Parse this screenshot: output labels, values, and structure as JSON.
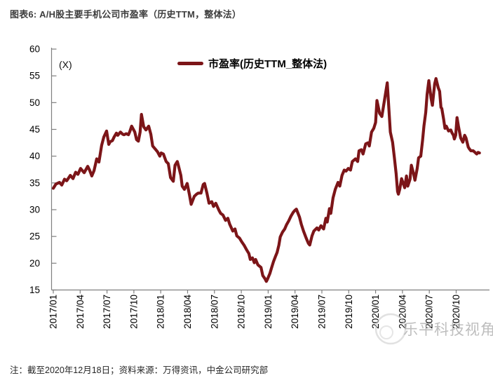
{
  "page": {
    "background": "#ffffff"
  },
  "title": {
    "text": "图表6: A/H股主要手机公司市盈率（历史TTM，整体法）"
  },
  "legend": {
    "label": "市盈率(历史TTM_整体法)",
    "swatch_color": "#7C1518"
  },
  "footnote": {
    "text": "注：截至2020年12月18日；资料来源：万得资讯，中金公司研究部"
  },
  "watermark": {
    "text": "乐平科技视角"
  },
  "chart_data": {
    "type": "line",
    "title": "A/H股主要手机公司市盈率（历史TTM，整体法）",
    "unit_label": "(X)",
    "legend_position": "top-center",
    "grid": false,
    "axis_color": "#7f7f7f",
    "label_color": "#000000",
    "x_axis": {
      "unit": "months since 2017/01 (fractional month offsets)",
      "tick_interval_months": 3,
      "tick_labels": [
        "2017/01",
        "2017/04",
        "2017/07",
        "2017/10",
        "2018/01",
        "2018/04",
        "2018/07",
        "2018/10",
        "2019/01",
        "2019/04",
        "2019/07",
        "2019/10",
        "2020/01",
        "2020/04",
        "2020/07",
        "2020/10"
      ],
      "range_months": [
        0,
        47.6
      ]
    },
    "y_axis": {
      "min": 15,
      "max": 60,
      "step": 5,
      "ticks": [
        15,
        20,
        25,
        30,
        35,
        40,
        45,
        50,
        55,
        60
      ]
    },
    "series": [
      {
        "name": "市盈率(历史TTM_整体法)",
        "color": "#7C1518",
        "points": [
          [
            0,
            34.0
          ],
          [
            0.3,
            34.8
          ],
          [
            0.7,
            35.1
          ],
          [
            0.95,
            34.6
          ],
          [
            1.25,
            35.7
          ],
          [
            1.5,
            35.4
          ],
          [
            1.9,
            36.4
          ],
          [
            2.2,
            35.8
          ],
          [
            2.5,
            37.0
          ],
          [
            2.75,
            36.6
          ],
          [
            3.05,
            37.7
          ],
          [
            3.45,
            36.9
          ],
          [
            3.85,
            38.1
          ],
          [
            4.05,
            37.4
          ],
          [
            4.3,
            36.3
          ],
          [
            4.55,
            37.3
          ],
          [
            4.85,
            39.5
          ],
          [
            5.1,
            38.9
          ],
          [
            5.4,
            42.0
          ],
          [
            5.65,
            43.6
          ],
          [
            5.95,
            44.7
          ],
          [
            6.2,
            42.2
          ],
          [
            6.35,
            42.7
          ],
          [
            6.6,
            42.9
          ],
          [
            6.8,
            43.6
          ],
          [
            7.05,
            44.3
          ],
          [
            7.2,
            43.9
          ],
          [
            7.5,
            44.5
          ],
          [
            7.75,
            44.1
          ],
          [
            7.9,
            44.0
          ],
          [
            8.15,
            44.2
          ],
          [
            8.4,
            44.0
          ],
          [
            8.55,
            44.6
          ],
          [
            8.75,
            45.6
          ],
          [
            9.1,
            44.5
          ],
          [
            9.3,
            43.1
          ],
          [
            9.5,
            42.8
          ],
          [
            9.7,
            44.5
          ],
          [
            9.85,
            47.8
          ],
          [
            10.1,
            45.5
          ],
          [
            10.35,
            44.9
          ],
          [
            10.65,
            45.6
          ],
          [
            10.9,
            44.1
          ],
          [
            11.1,
            41.9
          ],
          [
            11.45,
            41.2
          ],
          [
            11.65,
            40.8
          ],
          [
            11.9,
            40.0
          ],
          [
            12.05,
            40.6
          ],
          [
            12.3,
            40.4
          ],
          [
            12.6,
            39.0
          ],
          [
            12.85,
            38.6
          ],
          [
            13.1,
            36.0
          ],
          [
            13.4,
            35.3
          ],
          [
            13.6,
            38.3
          ],
          [
            13.85,
            39.0
          ],
          [
            14.0,
            38.1
          ],
          [
            14.25,
            36.4
          ],
          [
            14.4,
            34.4
          ],
          [
            14.65,
            33.8
          ],
          [
            14.95,
            34.9
          ],
          [
            15.2,
            32.9
          ],
          [
            15.4,
            31.0
          ],
          [
            15.75,
            32.5
          ],
          [
            16.0,
            32.9
          ],
          [
            16.2,
            33.1
          ],
          [
            16.5,
            33.1
          ],
          [
            16.75,
            34.7
          ],
          [
            16.9,
            34.9
          ],
          [
            17.15,
            33.2
          ],
          [
            17.4,
            31.2
          ],
          [
            17.7,
            31.5
          ],
          [
            17.9,
            30.6
          ],
          [
            18.15,
            31.2
          ],
          [
            18.5,
            29.9
          ],
          [
            18.7,
            29.3
          ],
          [
            18.95,
            29.0
          ],
          [
            19.25,
            28.0
          ],
          [
            19.5,
            28.4
          ],
          [
            19.7,
            27.3
          ],
          [
            20.05,
            26.0
          ],
          [
            20.3,
            26.4
          ],
          [
            20.5,
            25.1
          ],
          [
            20.8,
            24.7
          ],
          [
            21.05,
            24.0
          ],
          [
            21.3,
            23.4
          ],
          [
            21.6,
            22.5
          ],
          [
            21.85,
            21.8
          ],
          [
            22.0,
            20.7
          ],
          [
            22.25,
            21.0
          ],
          [
            22.45,
            20.1
          ],
          [
            22.6,
            20.7
          ],
          [
            22.85,
            19.7
          ],
          [
            23.2,
            19.2
          ],
          [
            23.4,
            17.7
          ],
          [
            23.65,
            17.1
          ],
          [
            23.8,
            16.6
          ],
          [
            23.95,
            17.1
          ],
          [
            24.2,
            18.1
          ],
          [
            24.35,
            19.0
          ],
          [
            24.6,
            20.3
          ],
          [
            24.8,
            21.2
          ],
          [
            25.0,
            22.0
          ],
          [
            25.2,
            23.4
          ],
          [
            25.35,
            24.9
          ],
          [
            25.6,
            25.8
          ],
          [
            25.85,
            26.4
          ],
          [
            26.05,
            27.2
          ],
          [
            26.3,
            27.9
          ],
          [
            26.55,
            28.8
          ],
          [
            26.8,
            29.5
          ],
          [
            27.0,
            29.9
          ],
          [
            27.15,
            30.1
          ],
          [
            27.5,
            28.6
          ],
          [
            27.7,
            27.3
          ],
          [
            27.95,
            26.0
          ],
          [
            28.25,
            24.7
          ],
          [
            28.5,
            23.7
          ],
          [
            28.65,
            23.4
          ],
          [
            28.9,
            25.1
          ],
          [
            29.1,
            26.0
          ],
          [
            29.45,
            26.6
          ],
          [
            29.65,
            26.2
          ],
          [
            29.9,
            27.0
          ],
          [
            30.2,
            26.4
          ],
          [
            30.45,
            28.4
          ],
          [
            30.6,
            27.7
          ],
          [
            30.85,
            30.2
          ],
          [
            31.0,
            29.3
          ],
          [
            31.25,
            32.2
          ],
          [
            31.5,
            33.8
          ],
          [
            31.8,
            35.1
          ],
          [
            32.0,
            34.4
          ],
          [
            32.25,
            36.4
          ],
          [
            32.5,
            37.4
          ],
          [
            32.7,
            37.2
          ],
          [
            32.95,
            37.7
          ],
          [
            33.2,
            37.4
          ],
          [
            33.4,
            39.0
          ],
          [
            33.75,
            39.5
          ],
          [
            34.0,
            39.0
          ],
          [
            34.15,
            41.0
          ],
          [
            34.4,
            41.2
          ],
          [
            34.6,
            40.4
          ],
          [
            34.9,
            42.3
          ],
          [
            35.15,
            42.5
          ],
          [
            35.3,
            41.9
          ],
          [
            35.55,
            44.5
          ],
          [
            35.8,
            45.2
          ],
          [
            36.0,
            46.3
          ],
          [
            36.15,
            50.4
          ],
          [
            36.45,
            48.0
          ],
          [
            36.7,
            47.4
          ],
          [
            37.0,
            50.5
          ],
          [
            37.3,
            53.7
          ],
          [
            37.65,
            44.5
          ],
          [
            37.9,
            42.6
          ],
          [
            38.1,
            39.7
          ],
          [
            38.3,
            36.7
          ],
          [
            38.45,
            33.4
          ],
          [
            38.55,
            32.9
          ],
          [
            38.7,
            33.8
          ],
          [
            38.9,
            35.8
          ],
          [
            39.25,
            34.1
          ],
          [
            39.45,
            36.3
          ],
          [
            39.6,
            34.4
          ],
          [
            39.85,
            35.7
          ],
          [
            40.0,
            38.3
          ],
          [
            40.25,
            36.7
          ],
          [
            40.4,
            35.5
          ],
          [
            40.65,
            37.7
          ],
          [
            40.8,
            39.7
          ],
          [
            41.05,
            40.0
          ],
          [
            41.25,
            43.0
          ],
          [
            41.4,
            45.6
          ],
          [
            41.6,
            48.2
          ],
          [
            41.75,
            51.5
          ],
          [
            41.95,
            54.1
          ],
          [
            42.2,
            50.8
          ],
          [
            42.35,
            49.5
          ],
          [
            42.6,
            53.5
          ],
          [
            42.75,
            54.5
          ],
          [
            43.0,
            52.8
          ],
          [
            43.15,
            52.1
          ],
          [
            43.3,
            49.1
          ],
          [
            43.4,
            48.9
          ],
          [
            43.6,
            46.9
          ],
          [
            43.75,
            45.2
          ],
          [
            43.9,
            45.6
          ],
          [
            44.15,
            44.7
          ],
          [
            44.4,
            44.9
          ],
          [
            44.55,
            44.3
          ],
          [
            44.7,
            43.9
          ],
          [
            44.8,
            43.2
          ],
          [
            44.95,
            43.9
          ],
          [
            45.1,
            47.2
          ],
          [
            45.25,
            45.6
          ],
          [
            45.5,
            43.4
          ],
          [
            45.75,
            42.6
          ],
          [
            45.95,
            43.9
          ],
          [
            46.1,
            43.4
          ],
          [
            46.35,
            41.7
          ],
          [
            46.5,
            41.3
          ],
          [
            46.65,
            41.0
          ],
          [
            46.9,
            41.0
          ],
          [
            47.05,
            40.8
          ],
          [
            47.3,
            40.4
          ],
          [
            47.45,
            40.7
          ],
          [
            47.6,
            40.6
          ]
        ]
      }
    ],
    "source_note": "注：截至2020年12月18日；资料来源：万得资讯，中金公司研究部"
  }
}
